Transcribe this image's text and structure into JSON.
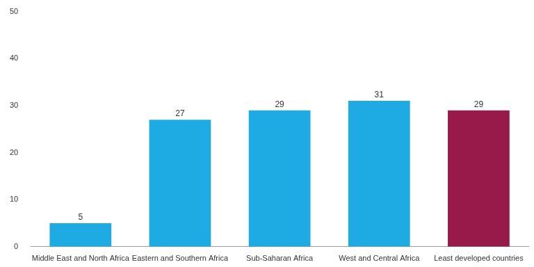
{
  "chart_data": {
    "type": "bar",
    "categories": [
      "Middle East and North Africa",
      "Eastern and Southern Africa",
      "Sub-Saharan Africa",
      "West and Central Africa",
      "Least developed countries"
    ],
    "values": [
      5,
      27,
      29,
      31,
      29
    ],
    "colors": [
      "#1eabe3",
      "#1eabe3",
      "#1eabe3",
      "#1eabe3",
      "#961a4a"
    ],
    "ylim": [
      0,
      50
    ],
    "yticks": [
      0,
      10,
      20,
      30,
      40,
      50
    ],
    "grid": false,
    "data_labels": true
  }
}
